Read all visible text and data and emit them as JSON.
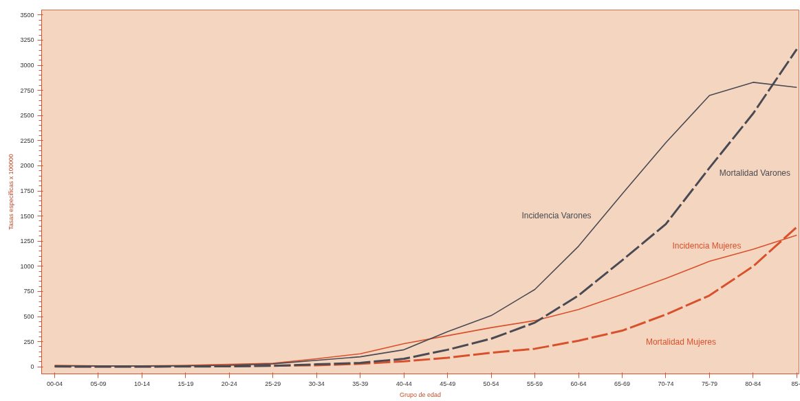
{
  "chart_data": {
    "type": "line",
    "xlabel": "Grupo de edad",
    "ylabel": "Tasas específicas x 100000",
    "categories": [
      "00-04",
      "05-09",
      "10-14",
      "15-19",
      "20-24",
      "25-29",
      "30-34",
      "35-39",
      "40-44",
      "45-49",
      "50-54",
      "55-59",
      "60-64",
      "65-69",
      "70-74",
      "75-79",
      "80-84",
      "85-"
    ],
    "ylim": [
      -70,
      3550
    ],
    "yticks": [
      0,
      250,
      500,
      750,
      1000,
      1250,
      1500,
      1750,
      2000,
      2250,
      2500,
      2750,
      3000,
      3250,
      3500
    ],
    "grid": false,
    "legend": false,
    "series": [
      {
        "name": "Incidencia Varones",
        "color": "#4a4a52",
        "line_style": "solid",
        "values": [
          10,
          8,
          8,
          10,
          15,
          30,
          65,
          100,
          170,
          350,
          510,
          770,
          1200,
          1720,
          2230,
          2700,
          2830,
          2780
        ]
      },
      {
        "name": "Mortalidad Varones",
        "color": "#4a4a52",
        "line_style": "dashed",
        "values": [
          3,
          2,
          2,
          3,
          5,
          10,
          25,
          40,
          80,
          170,
          280,
          440,
          710,
          1060,
          1420,
          1980,
          2520,
          3160
        ]
      },
      {
        "name": "Incidencia Mujeres",
        "color": "#d9512c",
        "line_style": "solid",
        "values": [
          15,
          10,
          10,
          15,
          25,
          35,
          80,
          130,
          230,
          310,
          390,
          460,
          570,
          720,
          880,
          1050,
          1170,
          1310
        ]
      },
      {
        "name": "Mortalidad Mujeres",
        "color": "#d9512c",
        "line_style": "dashed",
        "values": [
          5,
          3,
          3,
          5,
          8,
          12,
          15,
          30,
          55,
          90,
          140,
          180,
          260,
          360,
          520,
          710,
          1000,
          1390
        ]
      }
    ]
  }
}
